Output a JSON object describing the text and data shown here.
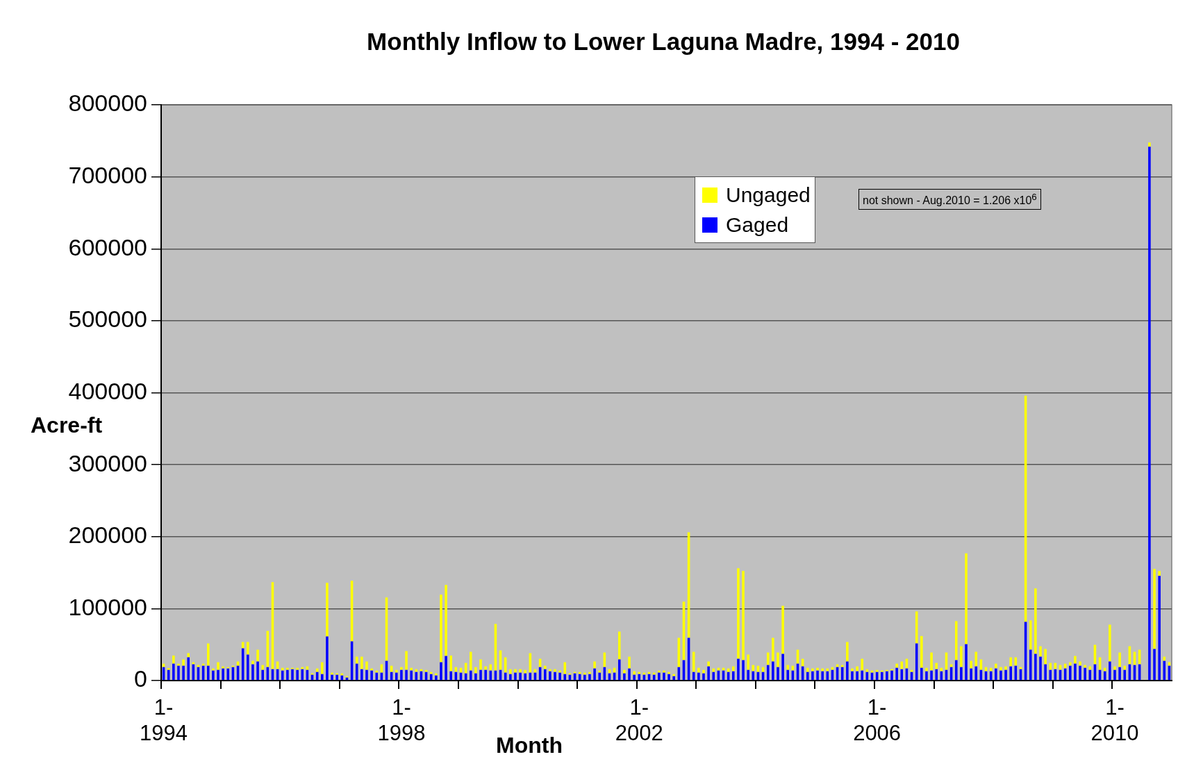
{
  "chart_data": {
    "type": "bar",
    "title": "Monthly Inflow to Lower Laguna Madre, 1994 - 2010",
    "xlabel": "Month",
    "ylabel": "Acre-ft",
    "categories": [
      "1-1994",
      null,
      null,
      null,
      null,
      null,
      null,
      null,
      null,
      null,
      null,
      null,
      null,
      null,
      null,
      null,
      null,
      null,
      null,
      null,
      null,
      null,
      null,
      null,
      null,
      null,
      null,
      null,
      null,
      null,
      null,
      null,
      null,
      null,
      null,
      null,
      null,
      null,
      null,
      null,
      null,
      null,
      null,
      null,
      null,
      null,
      null,
      null,
      "1-1998",
      null,
      null,
      null,
      null,
      null,
      null,
      null,
      null,
      null,
      null,
      null,
      null,
      null,
      null,
      null,
      null,
      null,
      null,
      null,
      null,
      null,
      null,
      null,
      null,
      null,
      null,
      null,
      null,
      null,
      null,
      null,
      null,
      null,
      null,
      null,
      null,
      null,
      null,
      null,
      null,
      null,
      null,
      null,
      null,
      null,
      null,
      null,
      "1-2002",
      null,
      null,
      null,
      null,
      null,
      null,
      null,
      null,
      null,
      null,
      null,
      null,
      null,
      null,
      null,
      null,
      null,
      null,
      null,
      null,
      null,
      null,
      null,
      null,
      null,
      null,
      null,
      null,
      null,
      null,
      null,
      null,
      null,
      null,
      null,
      null,
      null,
      null,
      null,
      null,
      null,
      null,
      null,
      null,
      null,
      null,
      null,
      "1-2006",
      null,
      null,
      null,
      null,
      null,
      null,
      null,
      null,
      null,
      null,
      null,
      null,
      null,
      null,
      null,
      null,
      null,
      null,
      null,
      null,
      null,
      null,
      null,
      null,
      null,
      null,
      null,
      null,
      null,
      null,
      null,
      null,
      null,
      null,
      null,
      null,
      null,
      null,
      null,
      null,
      null,
      null,
      null,
      null,
      null,
      null,
      null,
      "1-2010",
      null,
      null,
      null,
      null,
      null,
      null,
      null,
      null,
      null,
      null,
      null
    ],
    "stacked": true,
    "series": [
      {
        "name": "Gaged",
        "color": "#0000ff",
        "values": [
          18700,
          14800,
          23500,
          20600,
          20600,
          32300,
          22600,
          18700,
          20600,
          20600,
          13900,
          14800,
          16800,
          16800,
          18700,
          20600,
          44800,
          36100,
          22600,
          26500,
          14800,
          18700,
          15800,
          15800,
          13900,
          14800,
          15800,
          14800,
          15800,
          14800,
          8100,
          11900,
          9000,
          61300,
          8100,
          8100,
          7100,
          4200,
          54500,
          23500,
          15800,
          14800,
          13900,
          11000,
          11000,
          27400,
          11900,
          11000,
          14800,
          14800,
          13900,
          11900,
          12900,
          11900,
          9000,
          7100,
          25500,
          34200,
          12900,
          11900,
          11000,
          10000,
          13900,
          10000,
          14800,
          14800,
          13900,
          13900,
          14800,
          11000,
          9000,
          11000,
          11000,
          10000,
          11000,
          11000,
          18700,
          15800,
          12900,
          11900,
          11000,
          9000,
          8100,
          10000,
          9000,
          8100,
          9000,
          16800,
          11000,
          18700,
          10000,
          11000,
          29400,
          10000,
          16800,
          8100,
          9000,
          8100,
          9000,
          8100,
          11000,
          11000,
          9000,
          6100,
          18700,
          28400,
          59400,
          11900,
          11000,
          10000,
          19700,
          11900,
          13900,
          13900,
          11900,
          12900,
          30300,
          28400,
          14800,
          12900,
          11900,
          11900,
          21600,
          26500,
          18700,
          37100,
          14800,
          13900,
          23500,
          19700,
          11900,
          12900,
          13900,
          12900,
          12900,
          14800,
          18700,
          18700,
          26500,
          12900,
          12900,
          13900,
          11900,
          11000,
          11900,
          11900,
          12900,
          13900,
          17700,
          15800,
          16800,
          11900,
          51600,
          17700,
          12900,
          13900,
          15800,
          12900,
          14800,
          18700,
          28400,
          18700,
          50600,
          16800,
          19700,
          14800,
          12900,
          12900,
          16800,
          13900,
          14800,
          19700,
          20600,
          15800,
          81600,
          42900,
          37100,
          33200,
          22600,
          14800,
          15800,
          14800,
          16800,
          20600,
          23500,
          20600,
          17700,
          14800,
          22600,
          14800,
          12900,
          26500,
          14800,
          18700,
          14800,
          22600,
          21600,
          22600,
          null,
          741800,
          43900,
          145500,
          27400,
          20600
        ]
      },
      {
        "name": "Ungaged",
        "color": "#ffff00",
        "values": [
          4800,
          2600,
          11300,
          2900,
          8800,
          5800,
          2900,
          2900,
          2900,
          31000,
          2900,
          10700,
          2900,
          1900,
          1900,
          5900,
          8800,
          17500,
          4800,
          16400,
          6800,
          50300,
          121000,
          10700,
          3800,
          2900,
          1900,
          2900,
          2900,
          4900,
          1900,
          4900,
          16500,
          74500,
          2900,
          1900,
          2900,
          1900,
          84200,
          9700,
          17400,
          11700,
          2900,
          2900,
          11600,
          88100,
          8700,
          3800,
          3900,
          26200,
          3800,
          3900,
          2900,
          2900,
          2900,
          2900,
          93900,
          98700,
          21900,
          6800,
          6700,
          14500,
          26100,
          8700,
          14600,
          4900,
          8700,
          64800,
          27100,
          21300,
          6800,
          4800,
          4800,
          4800,
          27100,
          4800,
          11600,
          4800,
          2900,
          3900,
          2900,
          16500,
          1900,
          1900,
          2900,
          2900,
          2900,
          9700,
          2900,
          20300,
          5800,
          6700,
          38700,
          4800,
          16400,
          4800,
          2900,
          2900,
          2900,
          2900,
          2900,
          2900,
          2900,
          2900,
          40700,
          81300,
          146600,
          28100,
          6700,
          4800,
          6800,
          4900,
          3800,
          3800,
          4900,
          6800,
          125800,
          123900,
          21300,
          8700,
          8700,
          6800,
          17400,
          32900,
          20300,
          66800,
          6800,
          6700,
          19400,
          10600,
          5800,
          3900,
          3800,
          3900,
          3900,
          3900,
          3900,
          2900,
          27100,
          3900,
          6800,
          16400,
          3900,
          2900,
          2900,
          2000,
          1900,
          1900,
          5800,
          10700,
          13500,
          2900,
          44500,
          44200,
          4800,
          25100,
          8700,
          4800,
          24200,
          3900,
          54200,
          29000,
          126200,
          10600,
          20300,
          14600,
          5800,
          4800,
          6700,
          4800,
          4900,
          12600,
          11700,
          2900,
          314200,
          40700,
          91000,
          14500,
          21300,
          9700,
          8700,
          6800,
          6700,
          4900,
          10700,
          5900,
          3900,
          4900,
          27100,
          17500,
          4800,
          51200,
          4900,
          20300,
          5800,
          25100,
          18400,
          20300,
          null,
          5900,
          111300,
          6800,
          5800,
          4900
        ]
      }
    ],
    "ylim": [
      0,
      800000
    ],
    "yticks": [
      0,
      100000,
      200000,
      300000,
      400000,
      500000,
      600000,
      700000,
      800000
    ],
    "grid": "y",
    "legend": "top",
    "annotations": [
      "not shown - Aug.2010 = 1.206 x10$^{6}$"
    ]
  }
}
